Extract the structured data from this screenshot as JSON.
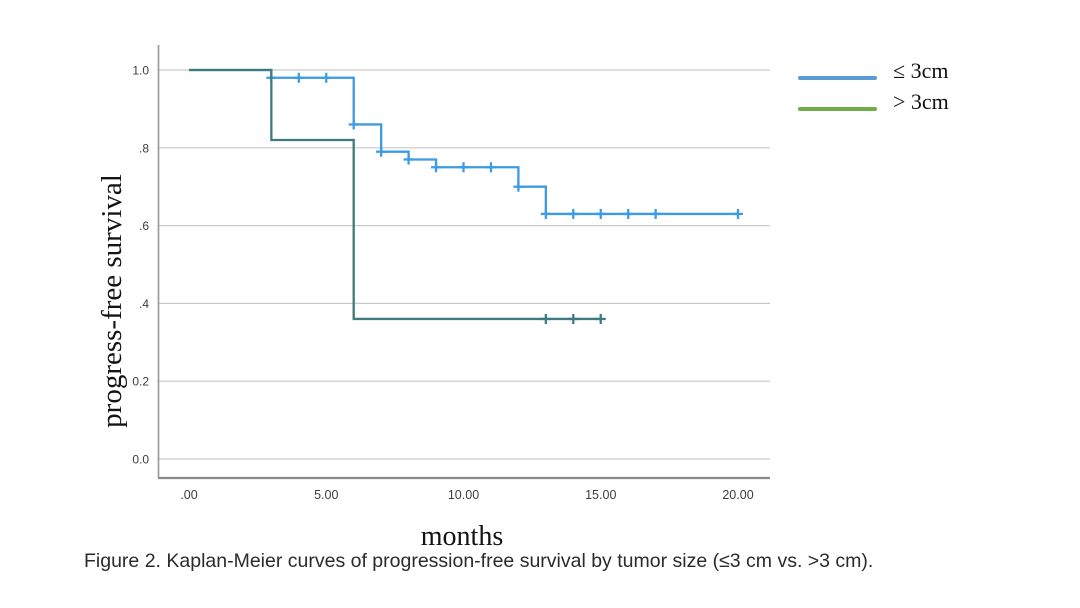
{
  "figure": {
    "caption": "Figure 2. Kaplan-Meier curves of progression-free survival by tumor size (≤3 cm vs. >3 cm)."
  },
  "legend": {
    "position": "outside-upper-right",
    "items": [
      {
        "label": "≤ 3cm",
        "swatch_color": "#5b9bd5"
      },
      {
        "label": "> 3cm",
        "swatch_color": "#70ad47"
      }
    ]
  },
  "chart_data": {
    "type": "line",
    "subtype": "kaplan_meier_step_function",
    "title": "",
    "xlabel": "months",
    "ylabel": "progress-free survival",
    "xlim": [
      0,
      20
    ],
    "ylim": [
      0.0,
      1.0
    ],
    "grid": "horizontal",
    "legend_position": "outside-upper-right",
    "axis_colors": {
      "gridline": "#c9c9c9",
      "y_spine": "#9b9b9b",
      "x_spine": "#8a8a8a",
      "tick_label": "#3d3d3d"
    },
    "x_ticks": [
      {
        "value": 0,
        "label": ".00"
      },
      {
        "value": 5,
        "label": "5.00"
      },
      {
        "value": 10,
        "label": "10.00"
      },
      {
        "value": 15,
        "label": "15.00"
      },
      {
        "value": 20,
        "label": "20.00"
      }
    ],
    "y_ticks": [
      {
        "value": 1.0,
        "label": "1.0"
      },
      {
        "value": 0.8,
        "label": ".8"
      },
      {
        "value": 0.6,
        "label": ".6"
      },
      {
        "value": 0.4,
        "label": ".4"
      },
      {
        "value": 0.2,
        "label": "0.2"
      },
      {
        "value": 0.0,
        "label": "0.0"
      }
    ],
    "series": [
      {
        "id": "le-3cm",
        "name": "≤ 3cm",
        "color": "#3d9be4",
        "legend_color": "#5b9bd5",
        "steps": [
          [
            0,
            1.0
          ],
          [
            3,
            1.0
          ],
          [
            3,
            0.98
          ],
          [
            6,
            0.98
          ],
          [
            6,
            0.86
          ],
          [
            7,
            0.86
          ],
          [
            7,
            0.79
          ],
          [
            8,
            0.79
          ],
          [
            8,
            0.77
          ],
          [
            9,
            0.77
          ],
          [
            9,
            0.75
          ],
          [
            12,
            0.75
          ],
          [
            12,
            0.7
          ],
          [
            13,
            0.7
          ],
          [
            13,
            0.63
          ],
          [
            20,
            0.63
          ]
        ],
        "censor_marks": [
          [
            3,
            0.98
          ],
          [
            4,
            0.98
          ],
          [
            5,
            0.98
          ],
          [
            6,
            0.86
          ],
          [
            7,
            0.79
          ],
          [
            8,
            0.77
          ],
          [
            9,
            0.75
          ],
          [
            10,
            0.75
          ],
          [
            11,
            0.75
          ],
          [
            12,
            0.7
          ],
          [
            13,
            0.63
          ],
          [
            14,
            0.63
          ],
          [
            15,
            0.63
          ],
          [
            16,
            0.63
          ],
          [
            17,
            0.63
          ],
          [
            20,
            0.63
          ]
        ]
      },
      {
        "id": "gt-3cm",
        "name": "> 3cm",
        "color": "#3f7a7e",
        "legend_color": "#70ad47",
        "steps": [
          [
            0,
            1.0
          ],
          [
            3,
            1.0
          ],
          [
            3,
            0.82
          ],
          [
            6,
            0.82
          ],
          [
            6,
            0.36
          ],
          [
            15,
            0.36
          ]
        ],
        "censor_marks": [
          [
            13,
            0.36
          ],
          [
            14,
            0.36
          ],
          [
            15,
            0.36
          ]
        ]
      }
    ]
  }
}
